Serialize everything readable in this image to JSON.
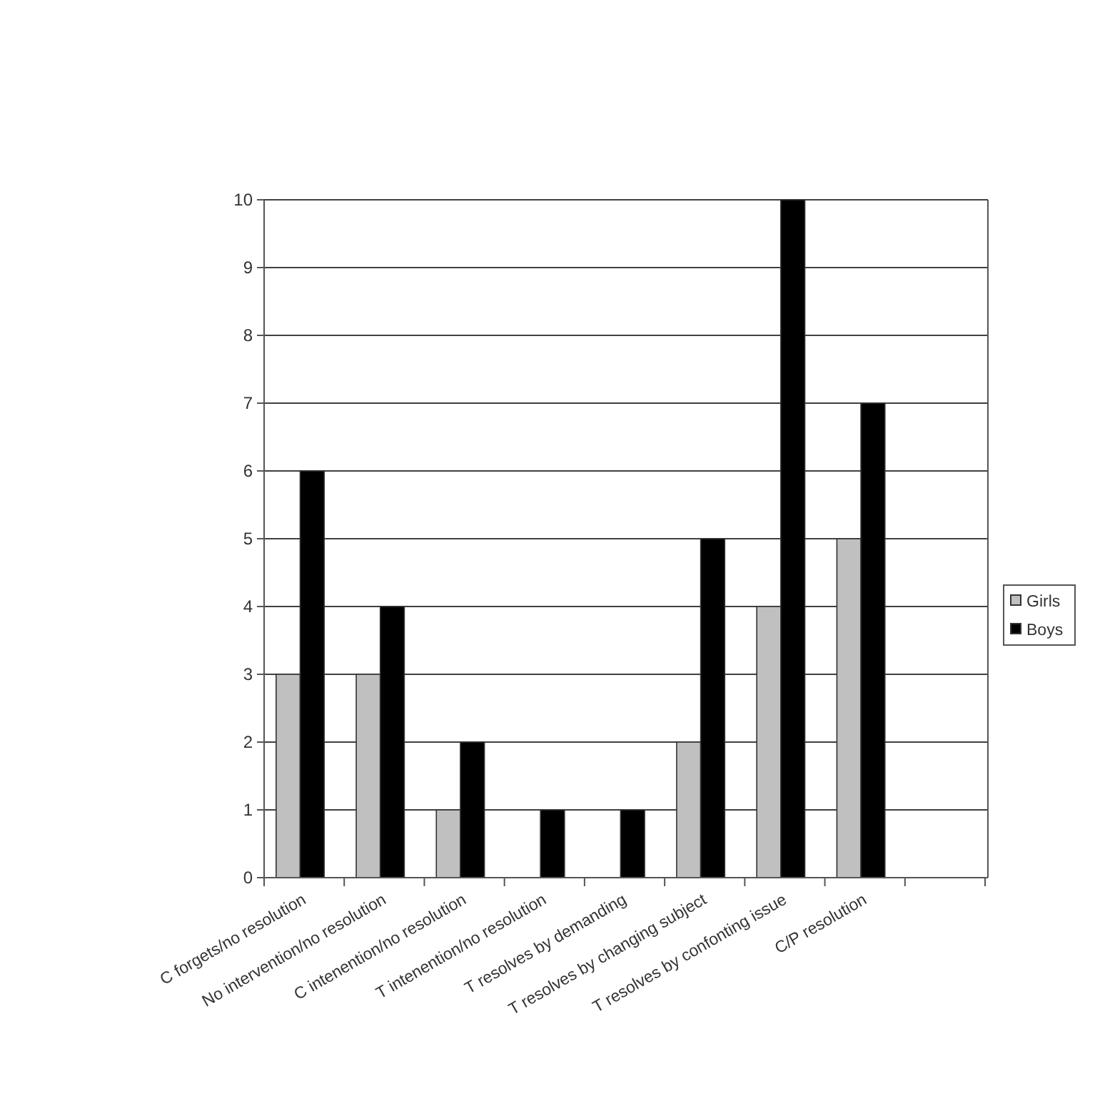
{
  "chart_data": {
    "type": "bar",
    "categories": [
      "C forgets/no resolution",
      "No intervention/no resolution",
      "C intenention/no resolution",
      "T intenention/no resolution",
      "T resolves by demanding",
      "T resolves by changing subject",
      "T resolves by confonting issue",
      "C/P resolution",
      null
    ],
    "series": [
      {
        "name": "Girls",
        "color": "#c0c0c0",
        "values": [
          3,
          3,
          1,
          0,
          0,
          2,
          4,
          5,
          null
        ]
      },
      {
        "name": "Boys",
        "color": "#000000",
        "values": [
          6,
          4,
          2,
          1,
          1,
          5,
          10,
          7,
          null
        ]
      }
    ],
    "ylim": [
      0,
      10
    ],
    "yticks": [
      0,
      1,
      2,
      3,
      4,
      5,
      6,
      7,
      8,
      9,
      10
    ],
    "grid": "y",
    "legend": "right"
  }
}
